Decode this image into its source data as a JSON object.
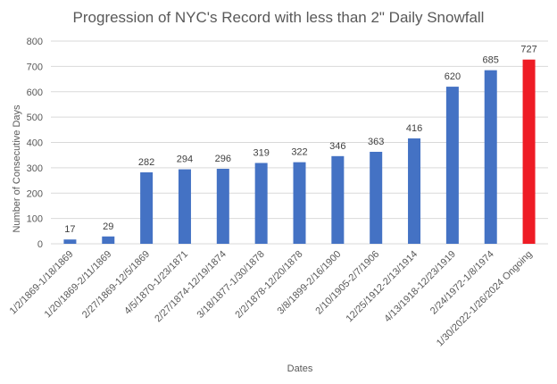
{
  "chart_data": {
    "type": "bar",
    "title": "Progression of NYC's Record with less than 2\" Daily Snowfall",
    "xlabel": "Dates",
    "ylabel": "Number of Consecutive Days",
    "ylim": [
      0,
      800
    ],
    "yticks": [
      0,
      100,
      200,
      300,
      400,
      500,
      600,
      700,
      800
    ],
    "grid": true,
    "legend": "none",
    "categories": [
      "1/2/1869-1/18/1869",
      "1/20/1869-2/11/1869",
      "2/27/1869-12/5/1869",
      "4/5/1870-1/23/1871",
      "2/27/1874-12/19/1874",
      "3/18/1877-1/30/1878",
      "2/2/1878-12/20/1878",
      "3/8/1899-2/16/1900",
      "2/10/1905-2/7/1906",
      "12/25/1912-2/13/1914",
      "4/13/1918-12/23/1919",
      "2/24/1972-1/8/1974",
      "1/30/2022-1/26/2024 Ongoing"
    ],
    "values": [
      17,
      29,
      282,
      294,
      296,
      319,
      322,
      346,
      363,
      416,
      620,
      685,
      727
    ],
    "colors": {
      "default": "#4472c4",
      "highlight": "#ee1c25",
      "highlight_index": 12
    }
  }
}
